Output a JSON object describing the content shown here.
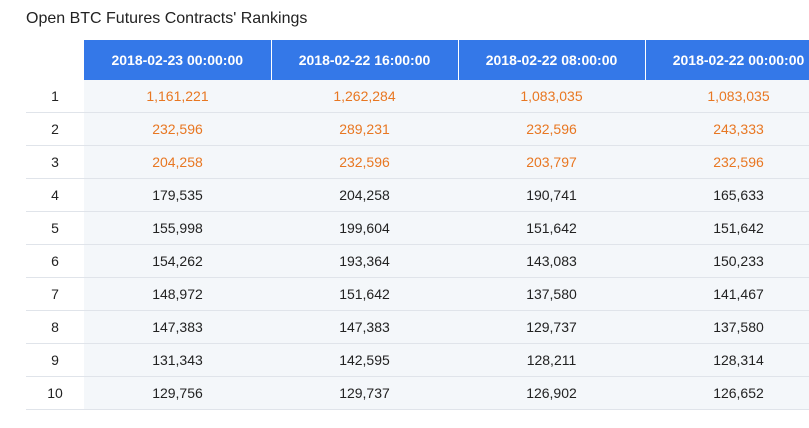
{
  "title": "Open BTC Futures Contracts' Rankings",
  "colors": {
    "header_bg": "#3478e8",
    "header_text": "#ffffff",
    "highlight_text": "#e87722",
    "cell_bg": "#f4f7fa"
  },
  "table": {
    "columns": [
      "2018-02-23 00:00:00",
      "2018-02-22 16:00:00",
      "2018-02-22 08:00:00",
      "2018-02-22 00:00:00"
    ],
    "rows": [
      {
        "rank": "1",
        "values": [
          "1,161,221",
          "1,262,284",
          "1,083,035",
          "1,083,035"
        ],
        "highlight": true
      },
      {
        "rank": "2",
        "values": [
          "232,596",
          "289,231",
          "232,596",
          "243,333"
        ],
        "highlight": true
      },
      {
        "rank": "3",
        "values": [
          "204,258",
          "232,596",
          "203,797",
          "232,596"
        ],
        "highlight": true
      },
      {
        "rank": "4",
        "values": [
          "179,535",
          "204,258",
          "190,741",
          "165,633"
        ],
        "highlight": false
      },
      {
        "rank": "5",
        "values": [
          "155,998",
          "199,604",
          "151,642",
          "151,642"
        ],
        "highlight": false
      },
      {
        "rank": "6",
        "values": [
          "154,262",
          "193,364",
          "143,083",
          "150,233"
        ],
        "highlight": false
      },
      {
        "rank": "7",
        "values": [
          "148,972",
          "151,642",
          "137,580",
          "141,467"
        ],
        "highlight": false
      },
      {
        "rank": "8",
        "values": [
          "147,383",
          "147,383",
          "129,737",
          "137,580"
        ],
        "highlight": false
      },
      {
        "rank": "9",
        "values": [
          "131,343",
          "142,595",
          "128,211",
          "128,314"
        ],
        "highlight": false
      },
      {
        "rank": "10",
        "values": [
          "129,756",
          "129,737",
          "126,902",
          "126,652"
        ],
        "highlight": false
      }
    ]
  }
}
